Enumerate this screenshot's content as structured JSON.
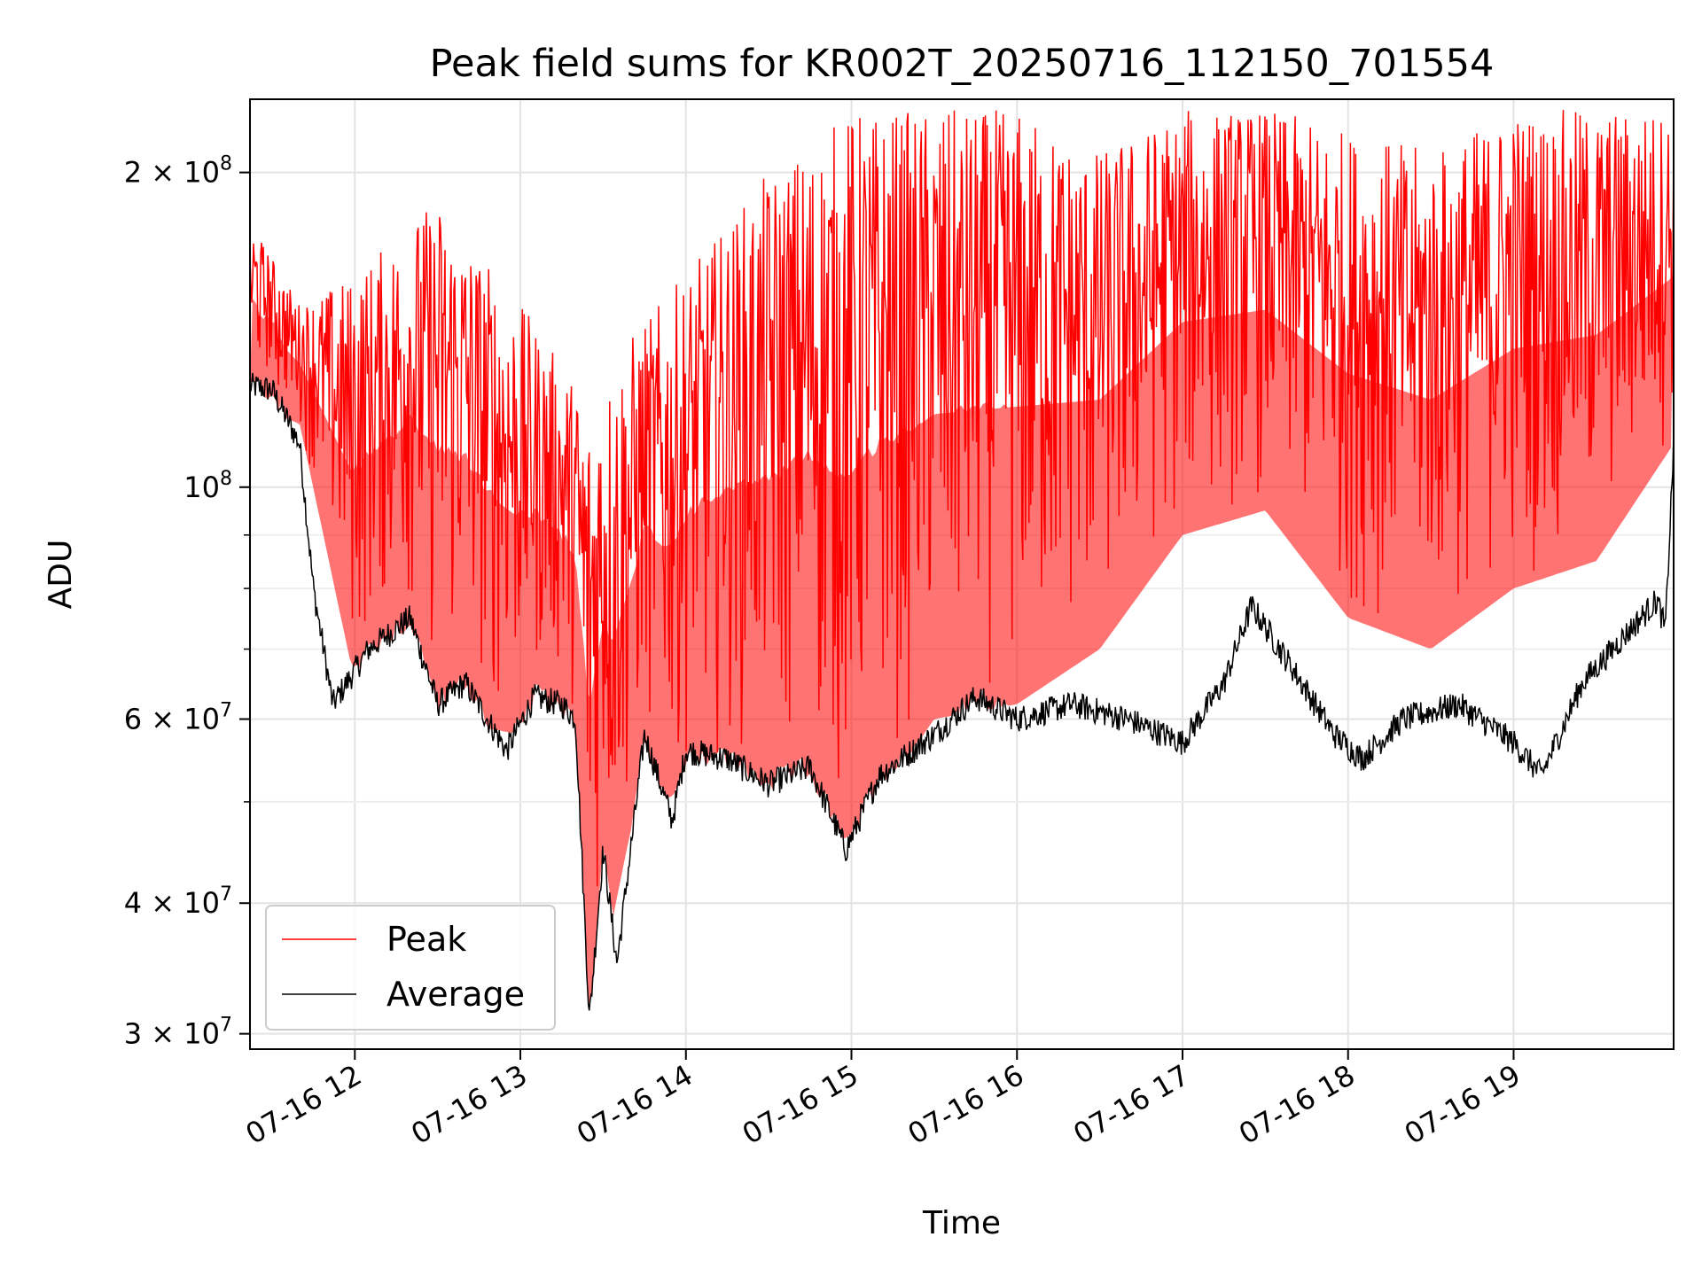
{
  "chart_data": {
    "type": "line",
    "title": "Peak field sums for KR002T_20250716_112150_701554",
    "xlabel": "Time",
    "ylabel": "ADU",
    "y_scale": "log",
    "ylim": [
      29000000,
      235000000
    ],
    "xlim": [
      "2025-07-16 11:22",
      "2025-07-16 19:58"
    ],
    "grid": true,
    "legend": {
      "location": "lower-left",
      "entries": [
        "Peak",
        "Average"
      ]
    },
    "x_ticks": [
      "07-16 12",
      "07-16 13",
      "07-16 14",
      "07-16 15",
      "07-16 16",
      "07-16 17",
      "07-16 18",
      "07-16 19"
    ],
    "x_tick_times": [
      "2025-07-16 12:00",
      "2025-07-16 13:00",
      "2025-07-16 14:00",
      "2025-07-16 15:00",
      "2025-07-16 16:00",
      "2025-07-16 17:00",
      "2025-07-16 18:00",
      "2025-07-16 19:00"
    ],
    "y_ticks": [
      {
        "value": 30000000,
        "mantissa": "3",
        "exp": "7"
      },
      {
        "value": 40000000,
        "mantissa": "4",
        "exp": "7"
      },
      {
        "value": 60000000,
        "mantissa": "6",
        "exp": "7"
      },
      {
        "value": 100000000,
        "mantissa": "",
        "exp": "8"
      },
      {
        "value": 200000000,
        "mantissa": "2",
        "exp": "8"
      }
    ],
    "y_minor_ticks": [
      50000000,
      70000000,
      80000000,
      90000000
    ],
    "series": [
      {
        "name": "Peak",
        "color": "#ff0000",
        "x": [
          "2025-07-16 11:22",
          "2025-07-16 11:40",
          "2025-07-16 12:00",
          "2025-07-16 12:30",
          "2025-07-16 13:00",
          "2025-07-16 13:25",
          "2025-07-16 13:40",
          "2025-07-16 14:00",
          "2025-07-16 14:30",
          "2025-07-16 15:00",
          "2025-07-16 15:30",
          "2025-07-16 16:00",
          "2025-07-16 16:30",
          "2025-07-16 17:00",
          "2025-07-16 17:30",
          "2025-07-16 18:00",
          "2025-07-16 18:30",
          "2025-07-16 19:00",
          "2025-07-16 19:30",
          "2025-07-16 19:58"
        ],
        "y": [
          180000000,
          150000000,
          160000000,
          190000000,
          150000000,
          120000000,
          140000000,
          160000000,
          200000000,
          230000000,
          230000000,
          230000000,
          210000000,
          230000000,
          230000000,
          220000000,
          210000000,
          230000000,
          230000000,
          230000000
        ],
        "min": [
          120000000,
          115000000,
          65000000,
          60000000,
          58000000,
          30000000,
          47000000,
          52000000,
          48000000,
          46000000,
          60000000,
          62000000,
          70000000,
          90000000,
          95000000,
          75000000,
          70000000,
          80000000,
          85000000,
          110000000
        ]
      },
      {
        "name": "Average",
        "color": "#000000",
        "x": [
          "2025-07-16 11:22",
          "2025-07-16 11:30",
          "2025-07-16 11:40",
          "2025-07-16 11:45",
          "2025-07-16 11:52",
          "2025-07-16 12:05",
          "2025-07-16 12:20",
          "2025-07-16 12:30",
          "2025-07-16 12:40",
          "2025-07-16 12:55",
          "2025-07-16 13:05",
          "2025-07-16 13:15",
          "2025-07-16 13:20",
          "2025-07-16 13:25",
          "2025-07-16 13:30",
          "2025-07-16 13:35",
          "2025-07-16 13:45",
          "2025-07-16 13:55",
          "2025-07-16 14:00",
          "2025-07-16 14:15",
          "2025-07-16 14:30",
          "2025-07-16 14:45",
          "2025-07-16 14:58",
          "2025-07-16 15:10",
          "2025-07-16 15:30",
          "2025-07-16 15:45",
          "2025-07-16 16:00",
          "2025-07-16 16:20",
          "2025-07-16 16:40",
          "2025-07-16 17:00",
          "2025-07-16 17:15",
          "2025-07-16 17:25",
          "2025-07-16 17:40",
          "2025-07-16 17:55",
          "2025-07-16 18:05",
          "2025-07-16 18:20",
          "2025-07-16 18:40",
          "2025-07-16 19:00",
          "2025-07-16 19:10",
          "2025-07-16 19:25",
          "2025-07-16 19:40",
          "2025-07-16 19:52",
          "2025-07-16 19:55",
          "2025-07-16 19:58"
        ],
        "y": [
          125000000,
          124000000,
          110000000,
          80000000,
          62000000,
          70000000,
          75000000,
          62000000,
          65000000,
          56000000,
          63000000,
          62000000,
          60000000,
          31000000,
          45000000,
          35000000,
          58000000,
          48000000,
          56000000,
          55000000,
          52000000,
          54000000,
          45000000,
          53000000,
          58000000,
          63000000,
          60000000,
          62000000,
          60000000,
          57000000,
          65000000,
          77000000,
          67000000,
          58000000,
          55000000,
          60000000,
          62000000,
          57000000,
          53000000,
          65000000,
          72000000,
          78000000,
          73000000,
          110000000
        ]
      }
    ]
  }
}
